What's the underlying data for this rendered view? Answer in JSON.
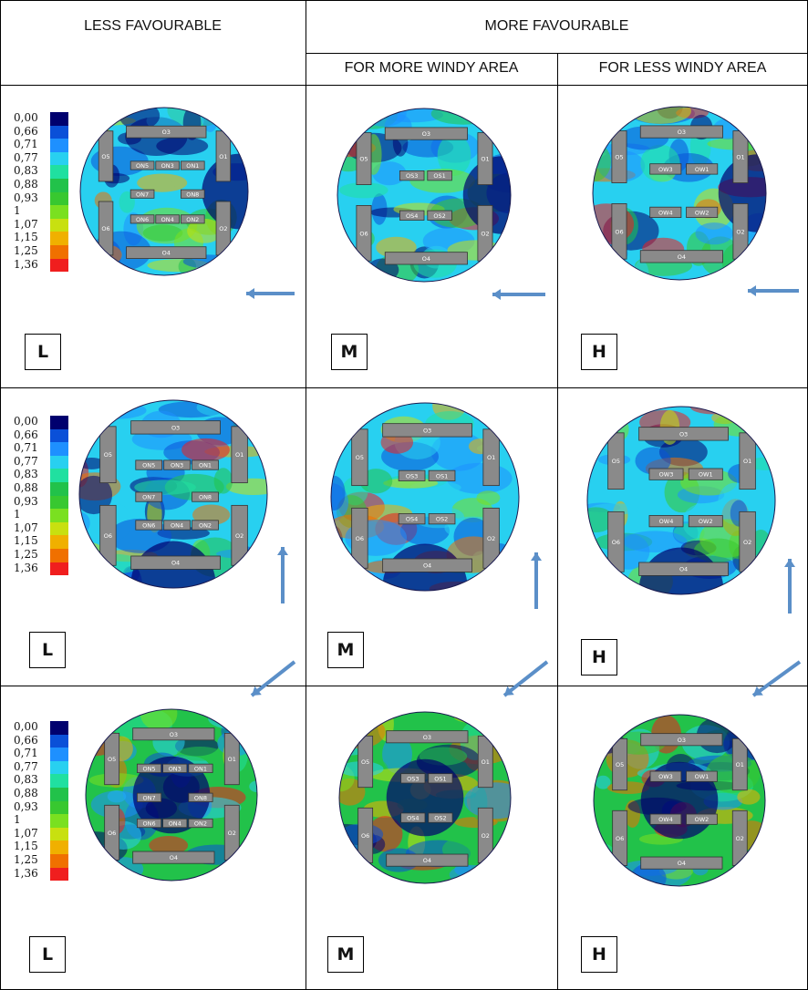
{
  "headers": {
    "less_favourable": "LESS FAVOURABLE",
    "more_favourable": "MORE FAVOURABLE",
    "more_windy": "FOR MORE WINDY AREA",
    "less_windy": "FOR LESS WINDY AREA"
  },
  "legend": {
    "values": [
      "0,00",
      "0,66",
      "0,71",
      "0,77",
      "0,83",
      "0,88",
      "0,93",
      "1",
      "1,07",
      "1,15",
      "1,25",
      "1,36"
    ],
    "colors": [
      "#00006e",
      "#0a50d8",
      "#1e90ff",
      "#28d0f0",
      "#20e0a0",
      "#22c24a",
      "#38c830",
      "#7ae020",
      "#c8e010",
      "#f0b000",
      "#f07000",
      "#f01e1e"
    ]
  },
  "rows": [
    {
      "wind": "west",
      "panels": [
        {
          "label": "L",
          "buildings": [
            "O3",
            "O1",
            "O5",
            "O6",
            "O2",
            "O4",
            "ON5",
            "ON3",
            "ON1",
            "ON7",
            "ON8",
            "ON6",
            "ON4",
            "ON2"
          ]
        },
        {
          "label": "M",
          "buildings": [
            "O3",
            "O1",
            "O5",
            "O6",
            "O2",
            "O4",
            "OS3",
            "OS1",
            "OS4",
            "OS2"
          ]
        },
        {
          "label": "H",
          "buildings": [
            "O3",
            "O1",
            "O5",
            "O6",
            "O2",
            "O4",
            "OW3",
            "OW1",
            "OW4",
            "OW2"
          ]
        }
      ]
    },
    {
      "wind": "north",
      "panels": [
        {
          "label": "L",
          "buildings": [
            "O3",
            "O1",
            "O5",
            "O6",
            "O2",
            "O4",
            "ON5",
            "ON3",
            "ON1",
            "ON7",
            "ON8",
            "ON6",
            "ON4",
            "ON2"
          ]
        },
        {
          "label": "M",
          "buildings": [
            "O3",
            "O1",
            "O5",
            "O6",
            "O2",
            "O4",
            "OS3",
            "OS1",
            "OS4",
            "OS2"
          ]
        },
        {
          "label": "H",
          "buildings": [
            "O3",
            "O1",
            "O5",
            "O6",
            "O2",
            "O4",
            "OW3",
            "OW1",
            "OW4",
            "OW2"
          ]
        }
      ]
    },
    {
      "wind": "north-east",
      "panels": [
        {
          "label": "L",
          "buildings": [
            "O3",
            "O1",
            "O5",
            "O6",
            "O2",
            "O4",
            "ON5",
            "ON3",
            "ON1",
            "ON7",
            "ON8",
            "ON6",
            "ON4",
            "ON2"
          ]
        },
        {
          "label": "M",
          "buildings": [
            "O3",
            "O1",
            "O5",
            "O6",
            "O2",
            "O4",
            "OS3",
            "OS1",
            "OS4",
            "OS2"
          ]
        },
        {
          "label": "H",
          "buildings": [
            "O3",
            "O1",
            "O5",
            "O6",
            "O2",
            "O4",
            "OW3",
            "OW1",
            "OW4",
            "OW2"
          ]
        }
      ]
    }
  ],
  "arrow_color": "#5b8fc8"
}
